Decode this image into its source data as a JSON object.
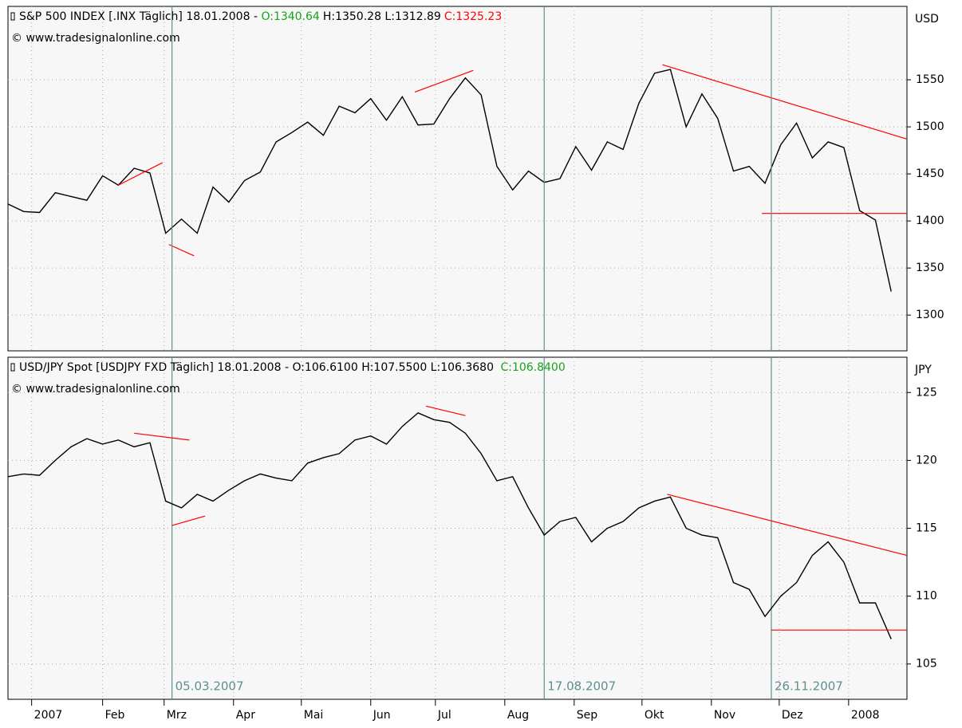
{
  "chart_data": [
    {
      "type": "line",
      "title": "S&P 500 INDEX [.INX  Täglich] 18.01.2008 - ",
      "open": "O:1340.64",
      "high_low": "H:1350.28 L:1312.89",
      "close": "C:1325.23",
      "source": "© www.tradesignalonline.com",
      "unit": "USD",
      "color": "#000000",
      "x": [
        -2,
        -1,
        0,
        1,
        2,
        3,
        4,
        5,
        6,
        7,
        8,
        9,
        10,
        11,
        12,
        13,
        14,
        15,
        16,
        17,
        18,
        19,
        20,
        21,
        22,
        23,
        24,
        25,
        26,
        27,
        28,
        29,
        30,
        31,
        32,
        33,
        34,
        35,
        36,
        37,
        38,
        39,
        40,
        41,
        42,
        43,
        44,
        45,
        46,
        47,
        48,
        49,
        50,
        51,
        52,
        53,
        54
      ],
      "values": [
        1418,
        1410,
        1409,
        1430,
        1426,
        1422,
        1448,
        1438,
        1456,
        1451,
        1387,
        1402,
        1387,
        1436,
        1420,
        1443,
        1452,
        1484,
        1494,
        1505,
        1491,
        1522,
        1515,
        1530,
        1507,
        1532,
        1502,
        1503,
        1530,
        1552,
        1534,
        1458,
        1433,
        1453,
        1441,
        1445,
        1479,
        1454,
        1484,
        1476,
        1525,
        1557,
        1561,
        1500,
        1535,
        1509,
        1453,
        1458,
        1440,
        1481,
        1504,
        1467,
        1484,
        1478,
        1411,
        1401,
        1325
      ],
      "xlim": [
        -2,
        55
      ],
      "ylim": [
        1262,
        1628
      ],
      "yticks": [
        1300,
        1350,
        1400,
        1450,
        1500,
        1550
      ],
      "grid": true,
      "trendlines": [
        [
          [
            5,
            1438
          ],
          [
            7.8,
            1462
          ]
        ],
        [
          [
            8.2,
            1375
          ],
          [
            9.8,
            1363
          ]
        ],
        [
          [
            23.8,
            1537
          ],
          [
            27.5,
            1560
          ]
        ],
        [
          [
            39.5,
            1566
          ],
          [
            55,
            1487
          ]
        ],
        [
          [
            45.8,
            1408
          ],
          [
            55,
            1408
          ]
        ]
      ],
      "trend_color": "#ff0000"
    },
    {
      "type": "line",
      "title": "USD/JPY Spot [USDJPY FXD  Täglich] 18.01.2008 - O:106.6100 H:107.5500 L:106.3680 ",
      "close": "C:106.8400",
      "source": "© www.tradesignalonline.com",
      "unit": "JPY",
      "color": "#000000",
      "x": [
        -2,
        -1,
        0,
        1,
        2,
        3,
        4,
        5,
        6,
        7,
        8,
        9,
        10,
        11,
        12,
        13,
        14,
        15,
        16,
        17,
        18,
        19,
        20,
        21,
        22,
        23,
        24,
        25,
        26,
        27,
        28,
        29,
        30,
        31,
        32,
        33,
        34,
        35,
        36,
        37,
        38,
        39,
        40,
        41,
        42,
        43,
        44,
        45,
        46,
        47,
        48,
        49,
        50,
        51,
        52,
        53,
        54
      ],
      "values": [
        118.8,
        119,
        118.9,
        120,
        121,
        121.6,
        121.2,
        121.5,
        121,
        121.3,
        117,
        116.5,
        117.5,
        117,
        117.8,
        118.5,
        119,
        118.7,
        118.5,
        119.8,
        120.2,
        120.5,
        121.5,
        121.8,
        121.2,
        122.5,
        123.5,
        123,
        122.8,
        122,
        120.5,
        118.5,
        118.8,
        116.5,
        114.5,
        115.5,
        115.8,
        114,
        115,
        115.5,
        116.5,
        117,
        117.3,
        115,
        114.5,
        114.3,
        111,
        110.5,
        108.5,
        110,
        111,
        113,
        114,
        112.5,
        109.5,
        109.5,
        106.84
      ],
      "xlim": [
        -2,
        55
      ],
      "ylim": [
        102.4,
        127.6
      ],
      "yticks": [
        105,
        110,
        115,
        120,
        125
      ],
      "grid": true,
      "trendlines": [
        [
          [
            6,
            122
          ],
          [
            9.5,
            121.5
          ]
        ],
        [
          [
            8.4,
            115.2
          ],
          [
            10.5,
            115.9
          ]
        ],
        [
          [
            24.5,
            124
          ],
          [
            27,
            123.3
          ]
        ],
        [
          [
            39.8,
            117.5
          ],
          [
            55,
            113
          ]
        ],
        [
          [
            46.4,
            107.5
          ],
          [
            55,
            107.5
          ]
        ]
      ],
      "trend_color": "#ff0000",
      "markers": [
        {
          "x": 8.4,
          "label": "05.03.2007"
        },
        {
          "x": 32,
          "label": "17.08.2007"
        },
        {
          "x": 46.4,
          "label": "26.11.2007"
        }
      ],
      "xticks": [
        {
          "value": -0.5,
          "label": "2007"
        },
        {
          "value": 4,
          "label": "Feb"
        },
        {
          "value": 7.9,
          "label": "Mrz"
        },
        {
          "value": 12.3,
          "label": "Apr"
        },
        {
          "value": 16.6,
          "label": "Mai"
        },
        {
          "value": 21,
          "label": "Jun"
        },
        {
          "value": 25.1,
          "label": "Jul"
        },
        {
          "value": 29.5,
          "label": "Aug"
        },
        {
          "value": 33.9,
          "label": "Sep"
        },
        {
          "value": 38.2,
          "label": "Okt"
        },
        {
          "value": 42.6,
          "label": "Nov"
        },
        {
          "value": 46.9,
          "label": "Dez"
        },
        {
          "value": 51.3,
          "label": "2008"
        }
      ]
    }
  ]
}
